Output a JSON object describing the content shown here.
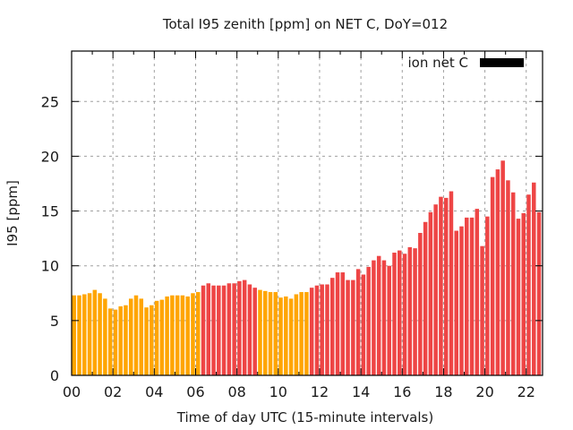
{
  "chart_data": {
    "type": "bar",
    "title": "Total I95 zenith [ppm] on NET C, DoY=012",
    "xlabel": "Time of day UTC (15-minute intervals)",
    "ylabel": "I95 [ppm]",
    "xlim": [
      0,
      23
    ],
    "ylim": [
      0,
      29.6
    ],
    "grid": true,
    "x_ticks": [
      "00",
      "02",
      "04",
      "06",
      "08",
      "10",
      "12",
      "14",
      "16",
      "18",
      "20",
      "22"
    ],
    "x_tick_hours": [
      0,
      2,
      4,
      6,
      8,
      10,
      12,
      14,
      16,
      18,
      20,
      22
    ],
    "y_ticks": [
      0,
      5,
      10,
      15,
      20,
      25
    ],
    "y_tick_labels": [
      "0",
      "5",
      "10",
      "15",
      "20",
      "25"
    ],
    "legend": {
      "label": "ion net C",
      "position": "top-right",
      "color": "#000000"
    },
    "interval_hours": 0.25,
    "colors": {
      "orange": "#ffa500",
      "red": "#ee4545"
    },
    "series": [
      {
        "name": "ion net C",
        "values": [
          7.3,
          7.3,
          7.4,
          7.5,
          7.8,
          7.5,
          7.0,
          6.1,
          6.0,
          6.3,
          6.4,
          7.0,
          7.3,
          7.0,
          6.2,
          6.4,
          6.8,
          6.9,
          7.2,
          7.3,
          7.3,
          7.3,
          7.2,
          7.5,
          7.6,
          8.2,
          8.4,
          8.2,
          8.2,
          8.2,
          8.4,
          8.4,
          8.6,
          8.7,
          8.3,
          8.0,
          7.8,
          7.7,
          7.6,
          7.6,
          7.1,
          7.2,
          7.0,
          7.4,
          7.6,
          7.6,
          8.0,
          8.2,
          8.3,
          8.3,
          8.9,
          9.4,
          9.4,
          8.7,
          8.7,
          9.7,
          9.2,
          9.9,
          10.5,
          10.9,
          10.5,
          10.0,
          11.2,
          11.4,
          11.1,
          11.7,
          11.6,
          13.0,
          14.0,
          14.9,
          15.6,
          16.3,
          16.2,
          16.8,
          13.2,
          13.6,
          14.4,
          14.4,
          15.2,
          11.8,
          14.5,
          18.1,
          18.8,
          19.6,
          17.8,
          16.7,
          14.3,
          14.8,
          16.5,
          17.6,
          14.9,
          14.1
        ],
        "bar_colors": [
          "orange",
          "orange",
          "orange",
          "orange",
          "orange",
          "orange",
          "orange",
          "orange",
          "orange",
          "orange",
          "orange",
          "orange",
          "orange",
          "orange",
          "orange",
          "orange",
          "orange",
          "orange",
          "orange",
          "orange",
          "orange",
          "orange",
          "orange",
          "orange",
          "orange",
          "red",
          "red",
          "red",
          "red",
          "red",
          "red",
          "red",
          "red",
          "red",
          "red",
          "red",
          "orange",
          "orange",
          "orange",
          "orange",
          "orange",
          "orange",
          "orange",
          "orange",
          "orange",
          "orange",
          "red",
          "red",
          "red",
          "red",
          "red",
          "red",
          "red",
          "red",
          "red",
          "red",
          "red",
          "red",
          "red",
          "red",
          "red",
          "red",
          "red",
          "red",
          "red",
          "red",
          "red",
          "red",
          "red",
          "red",
          "red",
          "red",
          "red",
          "red",
          "red",
          "red",
          "red",
          "red",
          "red",
          "red",
          "red",
          "red",
          "red",
          "red",
          "red",
          "red",
          "red",
          "red",
          "red",
          "red",
          "red",
          "red"
        ]
      }
    ]
  }
}
